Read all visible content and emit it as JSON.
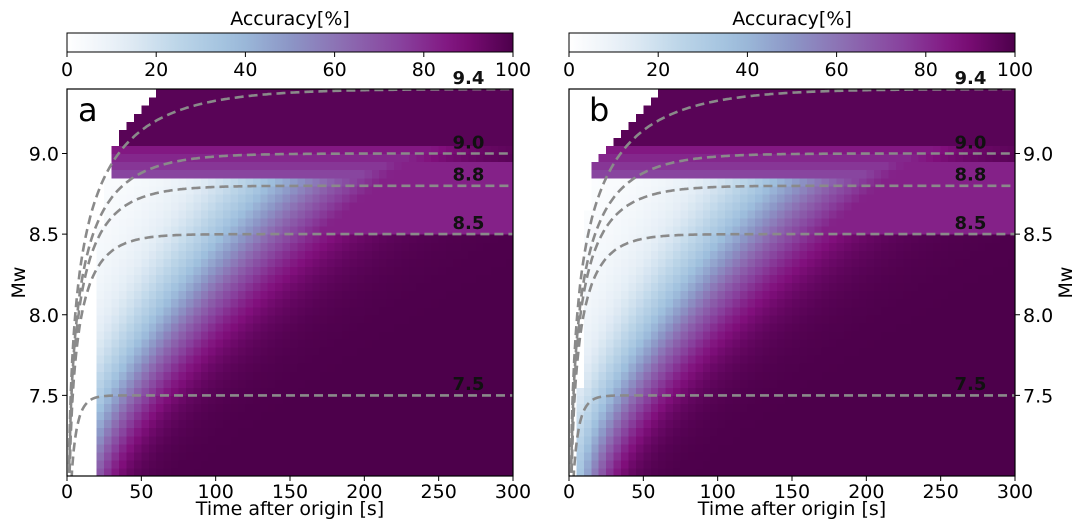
{
  "chart_data": [
    {
      "type": "heatmap",
      "panel_label": "a",
      "title": "",
      "xlabel": "Time after origin [s]",
      "ylabel": "Mw",
      "ylabel_side": "left",
      "xlim": [
        0,
        300
      ],
      "ylim": [
        7.0,
        9.4
      ],
      "xticks": [
        0,
        50,
        100,
        150,
        200,
        250,
        300
      ],
      "yticks": [
        7.5,
        8.0,
        8.5,
        9.0
      ],
      "ytick_labels": [
        "7.5",
        "8.0",
        "8.5",
        "9.0"
      ],
      "colorbar": {
        "label": "Accuracy[%]",
        "ticks": [
          0,
          20,
          40,
          60,
          80,
          100
        ],
        "range": [
          0,
          100
        ],
        "colormap": "BuPu"
      },
      "growth_curves": [
        {
          "label": "7.5",
          "final_mw": 7.5
        },
        {
          "label": "8.5",
          "final_mw": 8.5
        },
        {
          "label": "8.8",
          "final_mw": 8.8
        },
        {
          "label": "9.0",
          "final_mw": 9.0
        },
        {
          "label": "9.4",
          "final_mw": 9.4
        }
      ],
      "curve_label_time": 270,
      "curve_label_offset_mw": 0.02,
      "no_data_region": {
        "time_min": [
          20,
          22,
          25,
          28,
          35,
          50,
          65
        ],
        "time_min_mw": [
          7.0,
          8.5,
          8.7,
          8.9,
          9.1,
          9.3,
          9.4
        ]
      }
    },
    {
      "type": "heatmap",
      "panel_label": "b",
      "title": "",
      "xlabel": "Time after origin [s]",
      "ylabel": "Mw",
      "ylabel_side": "right",
      "xlim": [
        0,
        300
      ],
      "ylim": [
        7.0,
        9.4
      ],
      "xticks": [
        0,
        50,
        100,
        150,
        200,
        250,
        300
      ],
      "yticks": [
        7.5,
        8.0,
        8.5,
        9.0
      ],
      "ytick_labels": [
        "7.5",
        "8.0",
        "8.5",
        "9.0"
      ],
      "colorbar": {
        "label": "Accuracy[%]",
        "ticks": [
          0,
          20,
          40,
          60,
          80,
          100
        ],
        "range": [
          0,
          100
        ],
        "colormap": "BuPu"
      },
      "growth_curves": [
        {
          "label": "7.5",
          "final_mw": 7.5
        },
        {
          "label": "8.5",
          "final_mw": 8.5
        },
        {
          "label": "8.8",
          "final_mw": 8.8
        },
        {
          "label": "9.0",
          "final_mw": 9.0
        },
        {
          "label": "9.4",
          "final_mw": 9.4
        }
      ],
      "curve_label_time": 270,
      "curve_label_offset_mw": 0.02,
      "no_data_region": {
        "time_min": [
          5,
          10,
          12,
          15,
          20,
          40,
          60
        ],
        "time_min_mw": [
          7.0,
          8.1,
          8.6,
          8.9,
          9.0,
          9.2,
          9.4
        ]
      }
    }
  ],
  "colors": {
    "colormap_stops": [
      "#ffffff",
      "#e5eef6",
      "#bcd5e8",
      "#9ebfdd",
      "#8c96c6",
      "#8c6bb1",
      "#88419d",
      "#810f7c",
      "#4d004b"
    ],
    "curve": "#8a8a8a",
    "no_data": "#ffffff"
  }
}
